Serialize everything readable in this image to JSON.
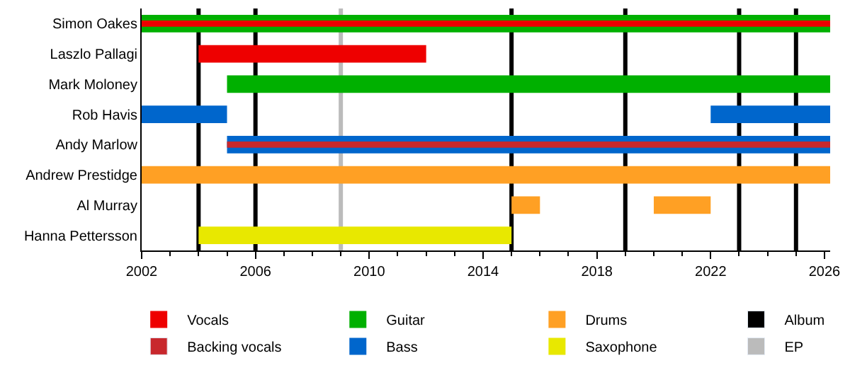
{
  "chart_data": {
    "type": "bar",
    "orientation": "horizontal",
    "categories": [
      "Simon Oakes",
      "Laszlo Pallagi",
      "Mark Moloney",
      "Rob Havis",
      "Andy Marlow",
      "Andrew Prestidge",
      "Al Murray",
      "Hanna Pettersson"
    ],
    "series": [
      {
        "name": "Vocals",
        "color": "#ee0000",
        "base": [
          2002,
          2004,
          null,
          null,
          null,
          null,
          null,
          null
        ],
        "values": [
          24.2,
          8,
          null,
          null,
          null,
          null,
          null,
          null
        ]
      },
      {
        "name": "Backing vocals",
        "color": "#c8282d",
        "base": [
          null,
          null,
          null,
          null,
          2005,
          null,
          null,
          null
        ],
        "values": [
          null,
          null,
          null,
          null,
          21.2,
          null,
          null,
          null
        ]
      },
      {
        "name": "Guitar",
        "color": "#00b000",
        "base": [
          2002,
          null,
          2005,
          null,
          null,
          null,
          null,
          null
        ],
        "values": [
          24.2,
          null,
          21.2,
          null,
          null,
          null,
          null,
          null
        ]
      },
      {
        "name": "Bass",
        "color": "#0066cc",
        "base": [
          null,
          null,
          null,
          2002,
          2005,
          null,
          null,
          null
        ],
        "values": [
          null,
          null,
          null,
          3,
          21.2,
          null,
          null,
          null
        ]
      },
      {
        "name": "Drums",
        "color": "#ffa024",
        "base": [
          null,
          null,
          null,
          null,
          null,
          2002,
          2015,
          null
        ],
        "values": [
          null,
          null,
          null,
          null,
          null,
          24.2,
          1,
          null
        ]
      },
      {
        "name": "Saxophone",
        "color": "#e8e800",
        "base": [
          null,
          null,
          null,
          null,
          null,
          null,
          null,
          2004
        ],
        "values": [
          null,
          null,
          null,
          null,
          null,
          null,
          null,
          11
        ]
      },
      {
        "color": "#0066cc",
        "base": [
          null,
          null,
          null,
          2022,
          null,
          null,
          null,
          null
        ],
        "values": [
          null,
          null,
          null,
          4.2,
          null,
          null,
          null,
          null
        ]
      },
      {
        "color": "#ffa024",
        "base": [
          null,
          null,
          null,
          null,
          null,
          null,
          2020,
          null
        ],
        "values": [
          null,
          null,
          null,
          null,
          null,
          null,
          2,
          null
        ]
      }
    ],
    "xlim": [
      2002,
      2026.2
    ],
    "xticks": [
      2002,
      2006,
      2010,
      2014,
      2018,
      2022,
      2026
    ],
    "ref_lines": [
      {
        "axis": "x",
        "value": 2004,
        "label": "Album",
        "color": "#000000"
      },
      {
        "axis": "x",
        "value": 2006,
        "color": "#000000"
      },
      {
        "axis": "x",
        "value": 2015,
        "color": "#000000"
      },
      {
        "axis": "x",
        "value": 2019,
        "color": "#000000"
      },
      {
        "axis": "x",
        "value": 2023,
        "color": "#000000"
      },
      {
        "axis": "x",
        "value": 2025,
        "color": "#000000"
      },
      {
        "axis": "x",
        "value": 2009,
        "label": "EP",
        "color": "#bbbbbb"
      }
    ],
    "grid": false,
    "legend": "bottom"
  }
}
